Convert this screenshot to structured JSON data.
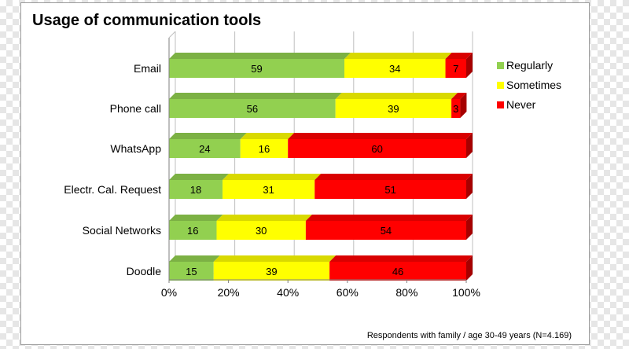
{
  "chart_data": {
    "type": "bar",
    "orientation": "horizontal",
    "stacked": true,
    "title": "Usage of communication tools",
    "categories": [
      "Email",
      "Phone call",
      "WhatsApp",
      "Electr. Cal. Request",
      "Social Networks",
      "Doodle"
    ],
    "series": [
      {
        "name": "Regularly",
        "color": "#92d050",
        "values": [
          59,
          56,
          24,
          18,
          16,
          15
        ]
      },
      {
        "name": "Sometimes",
        "color": "#ffff00",
        "values": [
          34,
          39,
          16,
          31,
          30,
          39
        ]
      },
      {
        "name": "Never",
        "color": "#ff0000",
        "values": [
          7,
          3,
          60,
          51,
          54,
          46
        ]
      }
    ],
    "xlim": [
      0,
      100
    ],
    "xticks": [
      "0%",
      "20%",
      "40%",
      "60%",
      "80%",
      "100%"
    ],
    "grid": true,
    "legend_position": "right",
    "footnote": "Respondents with family / age 30-49 years (N=4.169)"
  }
}
